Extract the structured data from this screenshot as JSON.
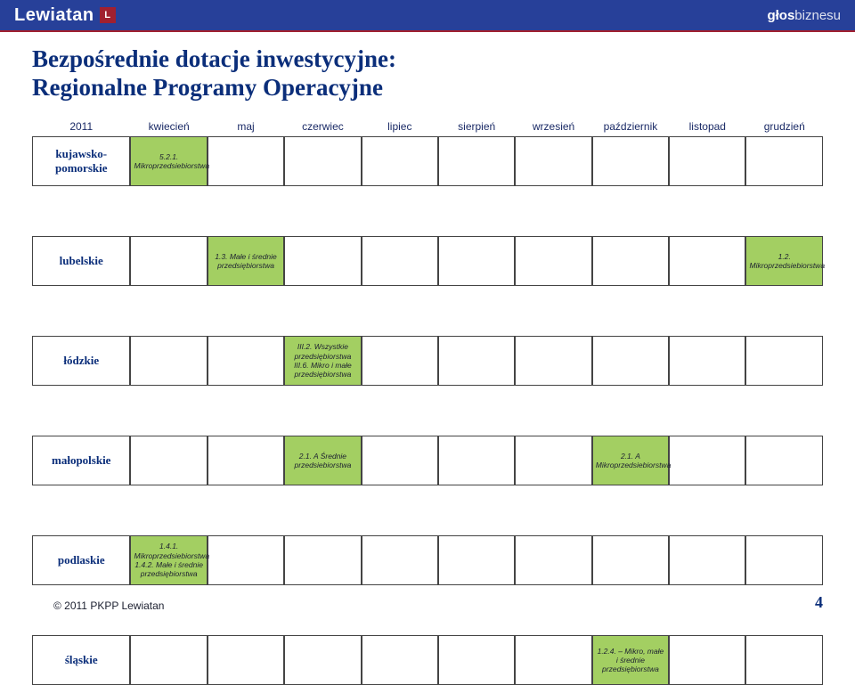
{
  "topbar": {
    "brand": "Lewiatan",
    "brand_mark": "L",
    "right_bold": "głos",
    "right_light": "biznesu"
  },
  "title_line1": "Bezpośrednie dotacje inwestycyjne:",
  "title_line2": "Regionalne Programy Operacyjne",
  "header": {
    "year": "2011",
    "months": [
      "kwiecień",
      "maj",
      "czerwiec",
      "lipiec",
      "sierpień",
      "wrzesień",
      "październik",
      "listopad",
      "grudzień"
    ]
  },
  "rows": {
    "kujawsko": {
      "label": "kujawsko-pomorskie",
      "cells": {
        "kwiecien": "5.2.1. Mikroprzedsiebiorstwa"
      }
    },
    "lubelskie": {
      "label": "lubelskie",
      "cells": {
        "maj": "1.3. Małe i średnie przedsiębiorstwa",
        "grudzien": "1.2. Mikroprzedsiebiorstwa"
      }
    },
    "lodzkie": {
      "label": "łódzkie",
      "cells": {
        "czerwiec": "III.2. Wszystkie przedsiębiorstwa III.6. Mikro i małe przedsiębiorstwa"
      }
    },
    "malopolskie": {
      "label": "małopolskie",
      "cells": {
        "czerwiec": "2.1. A Średnie przedsiebiorstwa",
        "pazdziernik": "2.1. A Mikroprzedsiebiorstwa"
      }
    },
    "podlaskie": {
      "label": "podlaskie",
      "cells": {
        "kwiecien": "1.4.1. Mikroprzedsiebiorstwa 1.4.2. Małe i średnie przedsiębiorstwa"
      }
    },
    "slaskie": {
      "label": "śląskie",
      "cells": {
        "pazdziernik": "1.2.4. – Mikro, małe i średnie przedsiębiorstwa"
      }
    }
  },
  "footer": {
    "copyright": "© 2011 PKPP Lewiatan",
    "page": "4"
  },
  "colors": {
    "topbar_bg": "#274099",
    "accent_red": "#a02030",
    "title_color": "#0b2e7a",
    "fill_green": "#a3cf62",
    "border": "#444444"
  }
}
